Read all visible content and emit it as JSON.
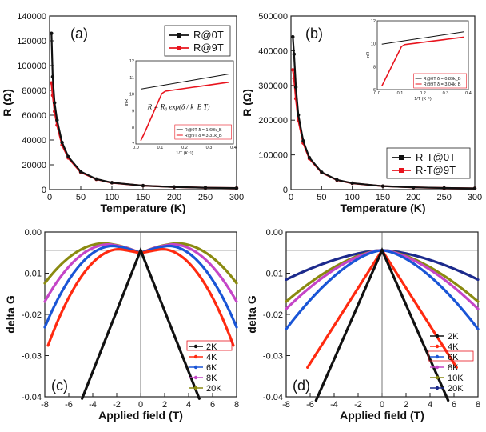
{
  "colors": {
    "black": "#111111",
    "red": "#e8141e",
    "orange": "#ff2a10",
    "blue": "#1a55d6",
    "magenta": "#c545c7",
    "olive": "#8a8a10",
    "navy": "#1c2a8c"
  },
  "chart_data": [
    {
      "panel": "(a)",
      "type": "line",
      "xlabel": "Temperature (K)",
      "ylabel": "R (Ω)",
      "xlim": [
        0,
        300
      ],
      "ylim": [
        0,
        140000
      ],
      "xticks": [
        "0",
        "50",
        "100",
        "150",
        "200",
        "250",
        "300"
      ],
      "yticks": [
        "0",
        "20000",
        "40000",
        "60000",
        "80000",
        "100000",
        "120000",
        "140000"
      ],
      "x": [
        3,
        5,
        8,
        12,
        20,
        30,
        50,
        75,
        100,
        150,
        200,
        250,
        300
      ],
      "series": [
        {
          "name": "R@0T",
          "color": "#111111",
          "values": [
            126000,
            91000,
            70000,
            56000,
            38000,
            26500,
            14500,
            8500,
            5600,
            3200,
            2100,
            1500,
            1200
          ]
        },
        {
          "name": "R@9T",
          "color": "#e8141e",
          "values": [
            86000,
            76000,
            63000,
            52000,
            36000,
            25500,
            14000,
            8300,
            5500,
            3150,
            2080,
            1480,
            1190
          ]
        }
      ],
      "legend": [
        "R@0T",
        "R@9T"
      ],
      "legend_position": "top-right",
      "inset": {
        "xlabel": "1/T (K⁻¹)",
        "ylabel": "lnR",
        "xticks": [
          "0.0",
          "0.1",
          "0.2",
          "0.3",
          "0.4"
        ],
        "yticks": [
          "7",
          "8",
          "9",
          "10",
          "11",
          "12"
        ],
        "formula": "R = R₀ exp(δ / k_B T)",
        "legend": [
          "R@0T δ = 1.69k_B",
          "R@9T δ = 3.31k_B"
        ]
      }
    },
    {
      "panel": "(b)",
      "type": "line",
      "xlabel": "Temperature (K)",
      "ylabel": "R (Ω)",
      "xlim": [
        0,
        300
      ],
      "ylim": [
        0,
        500000
      ],
      "xticks": [
        "0",
        "50",
        "100",
        "150",
        "200",
        "250",
        "300"
      ],
      "yticks": [
        "0",
        "100000",
        "200000",
        "300000",
        "400000",
        "500000"
      ],
      "x": [
        3,
        5,
        8,
        12,
        20,
        30,
        50,
        75,
        100,
        150,
        200,
        250,
        300
      ],
      "series": [
        {
          "name": "R-T@0T",
          "color": "#111111",
          "values": [
            440000,
            390000,
            295000,
            215000,
            140000,
            92000,
            50000,
            28000,
            18500,
            10000,
            6500,
            4600,
            3500
          ]
        },
        {
          "name": "R-T@9T",
          "color": "#e8141e",
          "values": [
            345000,
            320000,
            262000,
            200000,
            134000,
            89000,
            49000,
            27500,
            18200,
            9900,
            6400,
            4550,
            3450
          ]
        }
      ],
      "legend": [
        "R-T@0T",
        "R-T@9T"
      ],
      "legend_position": "bottom-right",
      "inset": {
        "xlabel": "1/T (K⁻¹)",
        "ylabel": "lnR",
        "xticks": [
          "0.0",
          "0.1",
          "0.2",
          "0.3",
          "0.4"
        ],
        "yticks": [
          "6",
          "8",
          "10",
          "12"
        ],
        "legend": [
          "R@0T δ = 0.89k_B",
          "R@9T δ = 3.04k_B"
        ]
      }
    },
    {
      "panel": "(c)",
      "type": "line",
      "xlabel": "Applied field (T)",
      "ylabel": "delta G",
      "xlim": [
        -9,
        9
      ],
      "ylim": [
        -0.04,
        0.005
      ],
      "xticks": [
        "-8",
        "-6",
        "-4",
        "-2",
        "0",
        "2",
        "4",
        "6",
        "8"
      ],
      "yticks": [
        "-0.04",
        "-0.03",
        "-0.02",
        "-0.01",
        "0.00"
      ],
      "legend_position": "bottom-right",
      "series": [
        {
          "name": "2K",
          "color": "#111111",
          "xr": 5.5,
          "peak_h": 0,
          "peak_v": 0,
          "end_v": -0.0405
        },
        {
          "name": "4K",
          "color": "#ff2a10",
          "xr": 8.7,
          "peak_h": 2.0,
          "peak_v": 0.0003,
          "end_v": -0.026
        },
        {
          "name": "6K",
          "color": "#1a55d6",
          "xr": 9,
          "peak_h": 2.6,
          "peak_v": 0.0012,
          "end_v": -0.021
        },
        {
          "name": "8K",
          "color": "#c545c7",
          "xr": 9,
          "peak_h": 3.0,
          "peak_v": 0.0016,
          "end_v": -0.014
        },
        {
          "name": "20K",
          "color": "#8a8a10",
          "xr": 9,
          "peak_h": 3.4,
          "peak_v": 0.0019,
          "end_v": -0.009
        }
      ]
    },
    {
      "panel": "(d)",
      "type": "line",
      "xlabel": "Applied field (T)",
      "ylabel": "delta G",
      "xlim": [
        -9,
        9
      ],
      "ylim": [
        -0.04,
        0.005
      ],
      "xticks": [
        "-8",
        "-6",
        "-4",
        "-2",
        "0",
        "2",
        "4",
        "6",
        "8"
      ],
      "yticks": [
        "-0.04",
        "-0.03",
        "-0.02",
        "-0.01",
        "0.00"
      ],
      "legend_position": "bottom-right",
      "series": [
        {
          "name": "2K",
          "color": "#111111",
          "xr": 6.2,
          "end_v": -0.041
        },
        {
          "name": "4K",
          "color": "#ff2a10",
          "xr": 7.0,
          "end_v": -0.032
        },
        {
          "name": "6K",
          "color": "#1a55d6",
          "xr": 9,
          "end_v": -0.0215
        },
        {
          "name": "8K",
          "color": "#c545c7",
          "xr": 9,
          "end_v": -0.016
        },
        {
          "name": "10K",
          "color": "#8a8a10",
          "xr": 9,
          "end_v": -0.014
        },
        {
          "name": "20K",
          "color": "#1c2a8c",
          "xr": 9,
          "end_v": -0.008
        }
      ]
    }
  ]
}
